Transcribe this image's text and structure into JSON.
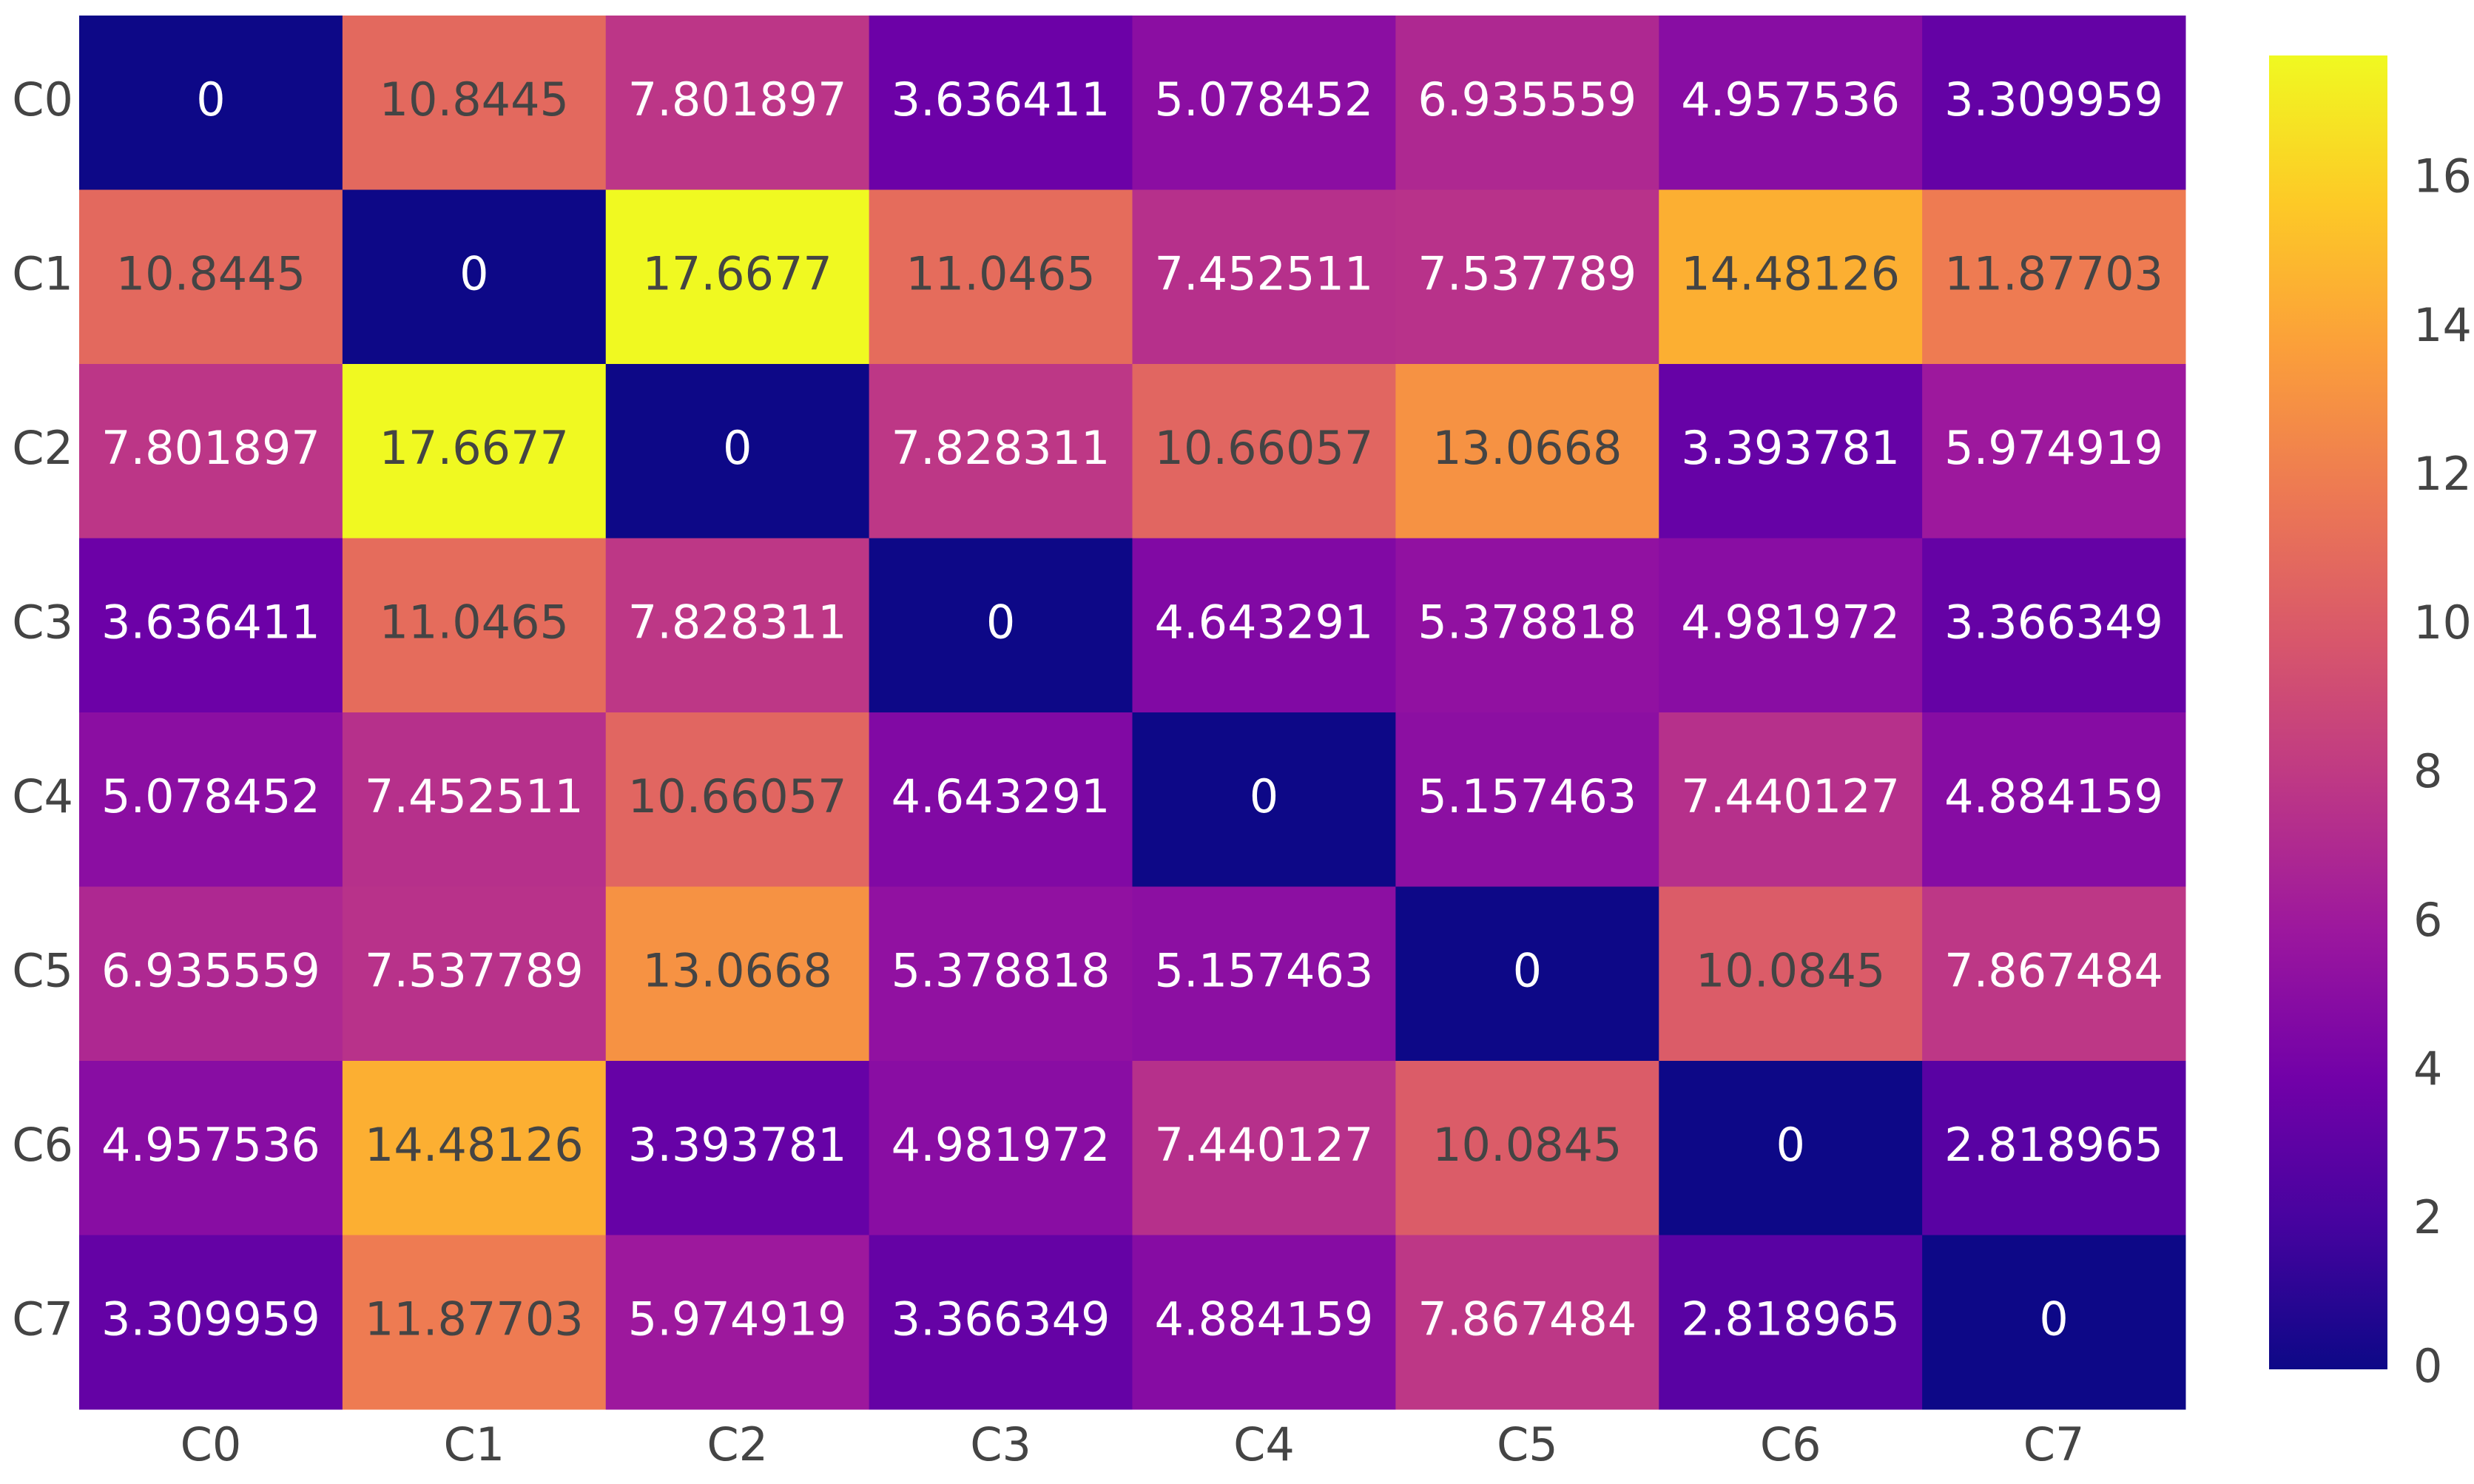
{
  "chart_data": {
    "type": "heatmap",
    "x": [
      "C0",
      "C1",
      "C2",
      "C3",
      "C4",
      "C5",
      "C6",
      "C7"
    ],
    "y": [
      "C0",
      "C1",
      "C2",
      "C3",
      "C4",
      "C5",
      "C6",
      "C7"
    ],
    "z": [
      [
        0,
        10.8445,
        7.801897,
        3.636411,
        5.078452,
        6.935559,
        4.957536,
        3.309959
      ],
      [
        10.8445,
        0,
        17.6677,
        11.0465,
        7.452511,
        7.537789,
        14.48126,
        11.87703
      ],
      [
        7.801897,
        17.6677,
        0,
        7.828311,
        10.66057,
        13.0668,
        3.393781,
        5.974919
      ],
      [
        3.636411,
        11.0465,
        7.828311,
        0,
        4.643291,
        5.378818,
        4.981972,
        3.366349
      ],
      [
        5.078452,
        7.452511,
        10.66057,
        4.643291,
        0,
        5.157463,
        7.440127,
        4.884159
      ],
      [
        6.935559,
        7.537789,
        13.0668,
        5.378818,
        5.157463,
        0,
        10.0845,
        7.867484
      ],
      [
        4.957536,
        14.48126,
        3.393781,
        4.981972,
        7.440127,
        10.0845,
        0,
        2.818965
      ],
      [
        3.309959,
        11.87703,
        5.974919,
        3.366349,
        4.884159,
        7.867484,
        2.818965,
        0
      ]
    ],
    "zlim": [
      0,
      17.6677
    ],
    "colorbar_ticks": [
      0,
      2,
      4,
      6,
      8,
      10,
      12,
      14,
      16
    ],
    "colorscale": [
      "#0d0887",
      "#46039f",
      "#7201a8",
      "#9c179e",
      "#bd3786",
      "#d8576b",
      "#ed7953",
      "#fb9f3a",
      "#fdca26",
      "#f0f921"
    ]
  }
}
